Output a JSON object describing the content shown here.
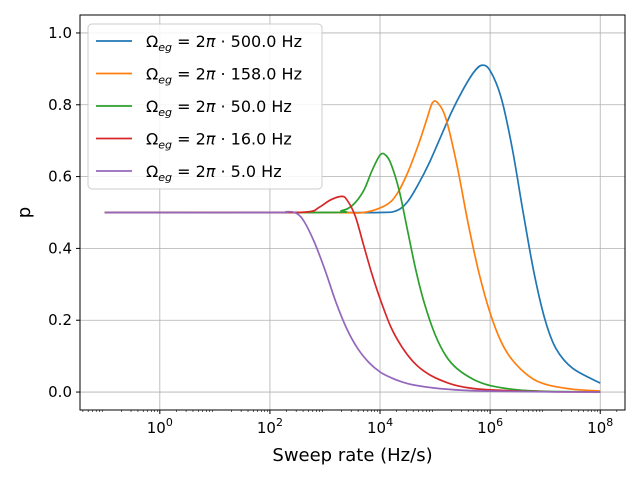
{
  "chart_data": {
    "type": "line",
    "title": "",
    "xlabel": "Sweep rate (Hz/s)",
    "ylabel": "p",
    "xscale": "log",
    "xlim_log10": [
      -1.45,
      8.45
    ],
    "ylim": [
      -0.05,
      1.05
    ],
    "grid": true,
    "legend_position": "top-left",
    "x_ticks": [
      {
        "exp": 0,
        "base": "10",
        "sup": "0"
      },
      {
        "exp": 2,
        "base": "10",
        "sup": "2"
      },
      {
        "exp": 4,
        "base": "10",
        "sup": "4"
      },
      {
        "exp": 6,
        "base": "10",
        "sup": "6"
      },
      {
        "exp": 8,
        "base": "10",
        "sup": "8"
      }
    ],
    "y_ticks": [
      {
        "value": 0.0,
        "label": "0.0"
      },
      {
        "value": 0.2,
        "label": "0.2"
      },
      {
        "value": 0.4,
        "label": "0.4"
      },
      {
        "value": 0.6,
        "label": "0.6"
      },
      {
        "value": 0.8,
        "label": "0.8"
      },
      {
        "value": 1.0,
        "label": "1.0"
      }
    ],
    "series": [
      {
        "name": "Ω_eg = 2π · 500.0 Hz",
        "legend_suffix": "500.0 Hz",
        "color": "#1f77b4",
        "points_log10x": [
          [
            -1,
            0.5
          ],
          [
            3,
            0.5
          ],
          [
            4,
            0.5
          ],
          [
            4.3,
            0.505
          ],
          [
            4.5,
            0.53
          ],
          [
            4.7,
            0.58
          ],
          [
            4.9,
            0.64
          ],
          [
            5.1,
            0.71
          ],
          [
            5.3,
            0.78
          ],
          [
            5.5,
            0.84
          ],
          [
            5.7,
            0.89
          ],
          [
            5.85,
            0.91
          ],
          [
            6,
            0.895
          ],
          [
            6.2,
            0.82
          ],
          [
            6.4,
            0.68
          ],
          [
            6.6,
            0.5
          ],
          [
            6.8,
            0.33
          ],
          [
            7,
            0.2
          ],
          [
            7.2,
            0.12
          ],
          [
            7.5,
            0.066
          ],
          [
            8,
            0.025
          ]
        ]
      },
      {
        "name": "Ω_eg = 2π · 158.0 Hz",
        "legend_suffix": "158.0 Hz",
        "color": "#ff7f0e",
        "points_log10x": [
          [
            -1,
            0.5
          ],
          [
            3,
            0.5
          ],
          [
            3.7,
            0.5
          ],
          [
            4.1,
            0.52
          ],
          [
            4.3,
            0.55
          ],
          [
            4.5,
            0.61
          ],
          [
            4.7,
            0.69
          ],
          [
            4.85,
            0.76
          ],
          [
            4.95,
            0.805
          ],
          [
            5.05,
            0.805
          ],
          [
            5.2,
            0.76
          ],
          [
            5.4,
            0.63
          ],
          [
            5.6,
            0.47
          ],
          [
            5.8,
            0.33
          ],
          [
            6,
            0.22
          ],
          [
            6.2,
            0.14
          ],
          [
            6.4,
            0.09
          ],
          [
            6.7,
            0.045
          ],
          [
            7,
            0.022
          ],
          [
            7.5,
            0.008
          ],
          [
            8,
            0.003
          ]
        ]
      },
      {
        "name": "Ω_eg = 2π · 50.0 Hz",
        "legend_suffix": "50.0 Hz",
        "color": "#2ca02c",
        "points_log10x": [
          [
            -1,
            0.5
          ],
          [
            3,
            0.5
          ],
          [
            3.3,
            0.505
          ],
          [
            3.5,
            0.52
          ],
          [
            3.7,
            0.56
          ],
          [
            3.85,
            0.615
          ],
          [
            4,
            0.66
          ],
          [
            4.1,
            0.66
          ],
          [
            4.2,
            0.635
          ],
          [
            4.35,
            0.56
          ],
          [
            4.5,
            0.45
          ],
          [
            4.65,
            0.34
          ],
          [
            4.8,
            0.25
          ],
          [
            5,
            0.16
          ],
          [
            5.2,
            0.1
          ],
          [
            5.4,
            0.065
          ],
          [
            5.7,
            0.035
          ],
          [
            6,
            0.018
          ],
          [
            6.5,
            0.006
          ],
          [
            7,
            0.002
          ],
          [
            8,
            0.0005
          ]
        ]
      },
      {
        "name": "Ω_eg = 2π · 16.0 Hz",
        "legend_suffix": "16.0 Hz",
        "color": "#d62728",
        "points_log10x": [
          [
            -1,
            0.5
          ],
          [
            2,
            0.5
          ],
          [
            2.7,
            0.502
          ],
          [
            2.9,
            0.515
          ],
          [
            3.1,
            0.535
          ],
          [
            3.3,
            0.545
          ],
          [
            3.4,
            0.535
          ],
          [
            3.55,
            0.49
          ],
          [
            3.7,
            0.41
          ],
          [
            3.85,
            0.33
          ],
          [
            4,
            0.26
          ],
          [
            4.2,
            0.18
          ],
          [
            4.4,
            0.125
          ],
          [
            4.6,
            0.085
          ],
          [
            4.8,
            0.058
          ],
          [
            5,
            0.04
          ],
          [
            5.3,
            0.022
          ],
          [
            5.6,
            0.012
          ],
          [
            6,
            0.006
          ],
          [
            7,
            0.001
          ],
          [
            8,
            0.0002
          ]
        ]
      },
      {
        "name": "Ω_eg = 2π · 5.0 Hz",
        "legend_suffix": "5.0 Hz",
        "color": "#9467bd",
        "points_log10x": [
          [
            -1,
            0.5
          ],
          [
            2,
            0.5
          ],
          [
            2.3,
            0.502
          ],
          [
            2.45,
            0.5
          ],
          [
            2.6,
            0.48
          ],
          [
            2.8,
            0.42
          ],
          [
            3,
            0.34
          ],
          [
            3.2,
            0.25
          ],
          [
            3.4,
            0.175
          ],
          [
            3.6,
            0.12
          ],
          [
            3.8,
            0.082
          ],
          [
            4,
            0.056
          ],
          [
            4.2,
            0.04
          ],
          [
            4.4,
            0.028
          ],
          [
            4.6,
            0.02
          ],
          [
            5,
            0.011
          ],
          [
            5.5,
            0.005
          ],
          [
            6,
            0.0025
          ],
          [
            7,
            0.0006
          ],
          [
            8,
            0.0002
          ]
        ]
      }
    ]
  }
}
